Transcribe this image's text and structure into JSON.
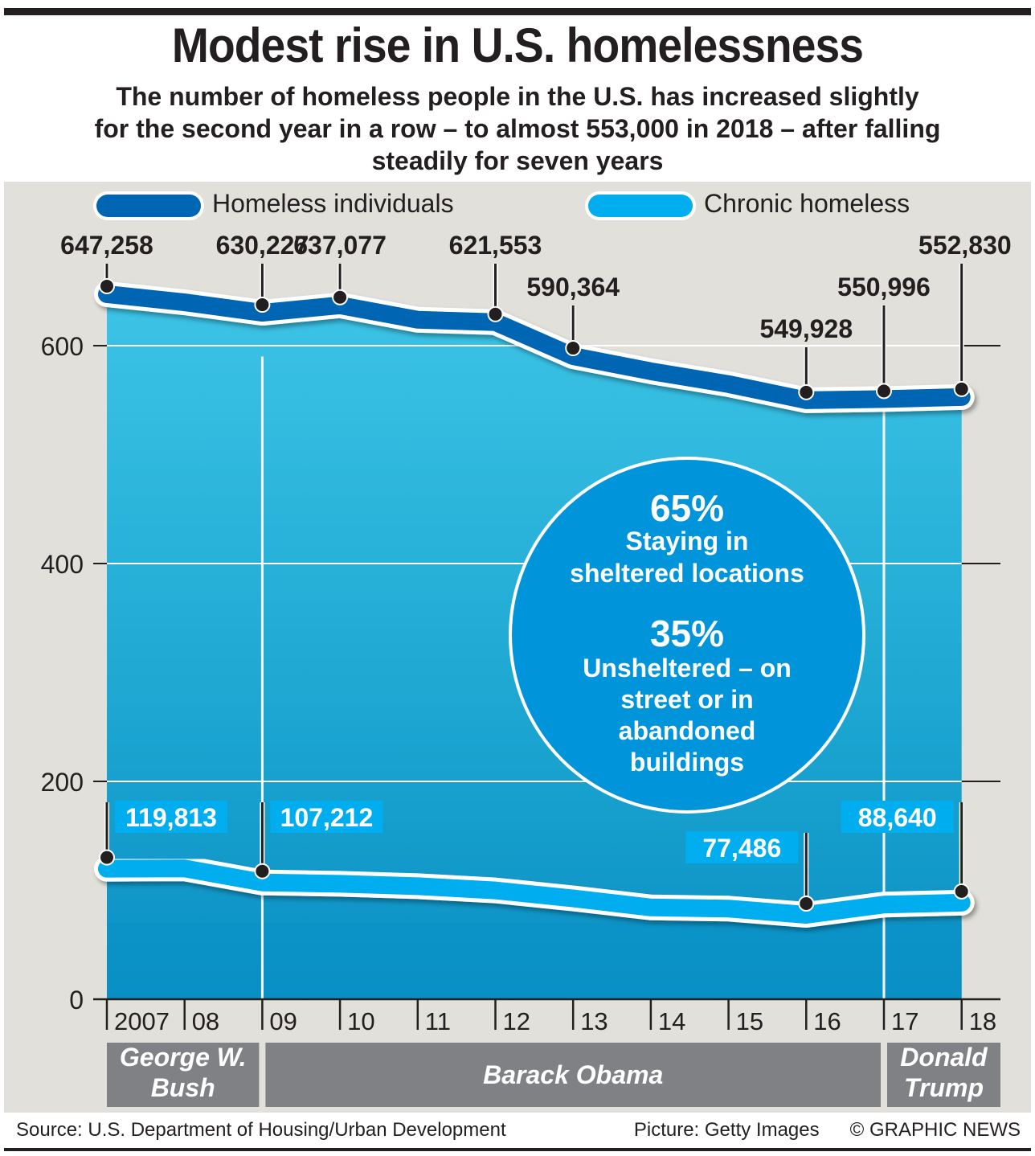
{
  "header": {
    "title": "Modest rise in U.S. homelessness",
    "subtitle_lines": [
      "The number of homeless people in the U.S. has increased slightly",
      "for the second year in a row – to almost 553,000 in 2018 – after falling",
      "steadily for seven years"
    ]
  },
  "colors": {
    "homeless_individuals": "#0066b3",
    "chronic_homeless": "#00aeef",
    "panel_bg": "#e1e0da",
    "photo_tint": "#1ea6cf",
    "circle": "#0095da",
    "president_band": "#808184"
  },
  "chart_data": {
    "type": "line",
    "title": "Modest rise in U.S. homelessness",
    "xlabel": "",
    "ylabel": "",
    "y_unit": "thousands",
    "ylim": [
      0,
      650
    ],
    "yticks": [
      0,
      200,
      400,
      600
    ],
    "ytick_labels": [
      "0",
      "200",
      "400",
      "600"
    ],
    "x": [
      2007,
      2008,
      2009,
      2010,
      2011,
      2012,
      2013,
      2014,
      2015,
      2016,
      2017,
      2018
    ],
    "xtick_labels": [
      "2007",
      "08",
      "09",
      "10",
      "11",
      "12",
      "13",
      "14",
      "15",
      "16",
      "17",
      "18"
    ],
    "grid": true,
    "legend_position": "top",
    "series": [
      {
        "name": "Homeless individuals",
        "values": [
          647.258,
          639.8,
          630.227,
          637.077,
          623.8,
          621.553,
          590.364,
          576.5,
          564.7,
          549.928,
          550.996,
          552.83
        ],
        "labels": [
          "647,258",
          null,
          "630,227",
          "637,077",
          null,
          "621,553",
          "590,364",
          null,
          null,
          "549,928",
          "550,996",
          "552,830"
        ]
      },
      {
        "name": "Chronic homeless",
        "values": [
          119.813,
          120.1,
          107.212,
          106.0,
          103.8,
          99.9,
          92.6,
          84.3,
          83.2,
          77.486,
          86.9,
          88.64
        ],
        "labels": [
          "119,813",
          null,
          "107,212",
          null,
          null,
          null,
          null,
          null,
          null,
          "77,486",
          null,
          "88,640"
        ]
      }
    ],
    "presidents": [
      {
        "name_lines": [
          "George W.",
          "Bush"
        ],
        "from": 2007,
        "to": 2009
      },
      {
        "name_lines": [
          "Barack Obama"
        ],
        "from": 2009,
        "to": 2017
      },
      {
        "name_lines": [
          "Donald",
          "Trump"
        ],
        "from": 2017,
        "to": 2018
      }
    ],
    "annotation": {
      "stat1_value": "65%",
      "stat1_lines": [
        "Staying in",
        "sheltered locations"
      ],
      "stat2_value": "35%",
      "stat2_lines": [
        "Unsheltered – on",
        "street or in",
        "abandoned",
        "buildings"
      ]
    }
  },
  "footer": {
    "source": "Source: U.S. Department of Housing/Urban Development",
    "picture": "Picture: Getty Images",
    "credit": "© GRAPHIC NEWS"
  }
}
